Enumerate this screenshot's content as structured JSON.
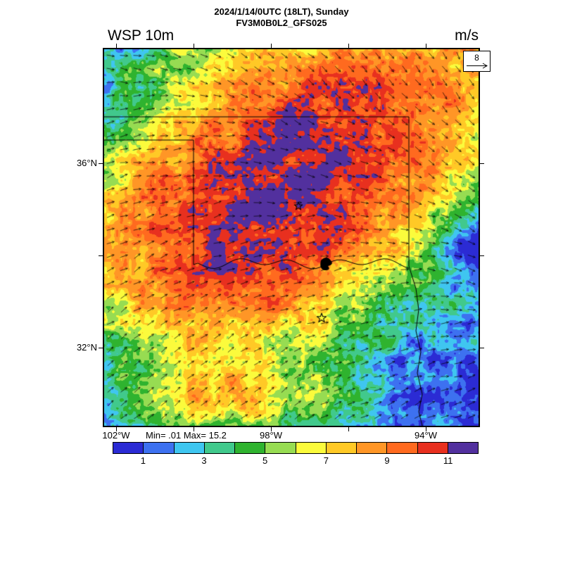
{
  "header": {
    "title_line1": "2024/1/14/0UTC (18LT), Sunday",
    "title_line2": "FV3M0B0L2_GFS025",
    "variable_label": "WSP 10m",
    "units_label": "m/s"
  },
  "map": {
    "reference_vector_value": "8",
    "stats_text": "Min= .01 Max= 15.2",
    "lat_labels": [
      "36°N",
      "32°N"
    ],
    "lon_labels": [
      "102°W",
      "98°W",
      "94°W"
    ]
  },
  "colorbar": {
    "colors": [
      "#2B2BD4",
      "#3D71F0",
      "#3FC6F0",
      "#41C98C",
      "#2FB32F",
      "#97DC52",
      "#FBFB3C",
      "#FFC926",
      "#FF9626",
      "#FF6A1F",
      "#E8301F",
      "#52309E"
    ],
    "tick_labels": [
      "1",
      "3",
      "5",
      "7",
      "9",
      "11"
    ]
  },
  "chart_data": {
    "type": "heatmap",
    "variable": "WSP 10m",
    "units": "m/s",
    "valid_time": "2024/1/14/0UTC (18LT), Sunday",
    "model": "FV3M0B0L2_GFS025",
    "min": 0.01,
    "max": 15.2,
    "reference_vector_ms": 8,
    "colorbar_levels": [
      1,
      2,
      3,
      4,
      5,
      6,
      7,
      8,
      9,
      10,
      11
    ],
    "colorbar_tick_labels": [
      1,
      3,
      5,
      7,
      9,
      11
    ],
    "lat_ticks_deg_n": [
      36,
      32
    ],
    "lon_ticks_deg_w": [
      102,
      98,
      94
    ],
    "overlay": "wind direction arrows and state borders",
    "legend_position": "bottom",
    "region": "Oklahoma / North Texas",
    "field_description": "10 m wind speed filled contours; highest winds (red/purple, 10-15 m/s) over central Oklahoma, low winds (blue/teal, 1-4 m/s) over southeast quadrant and far edges"
  }
}
